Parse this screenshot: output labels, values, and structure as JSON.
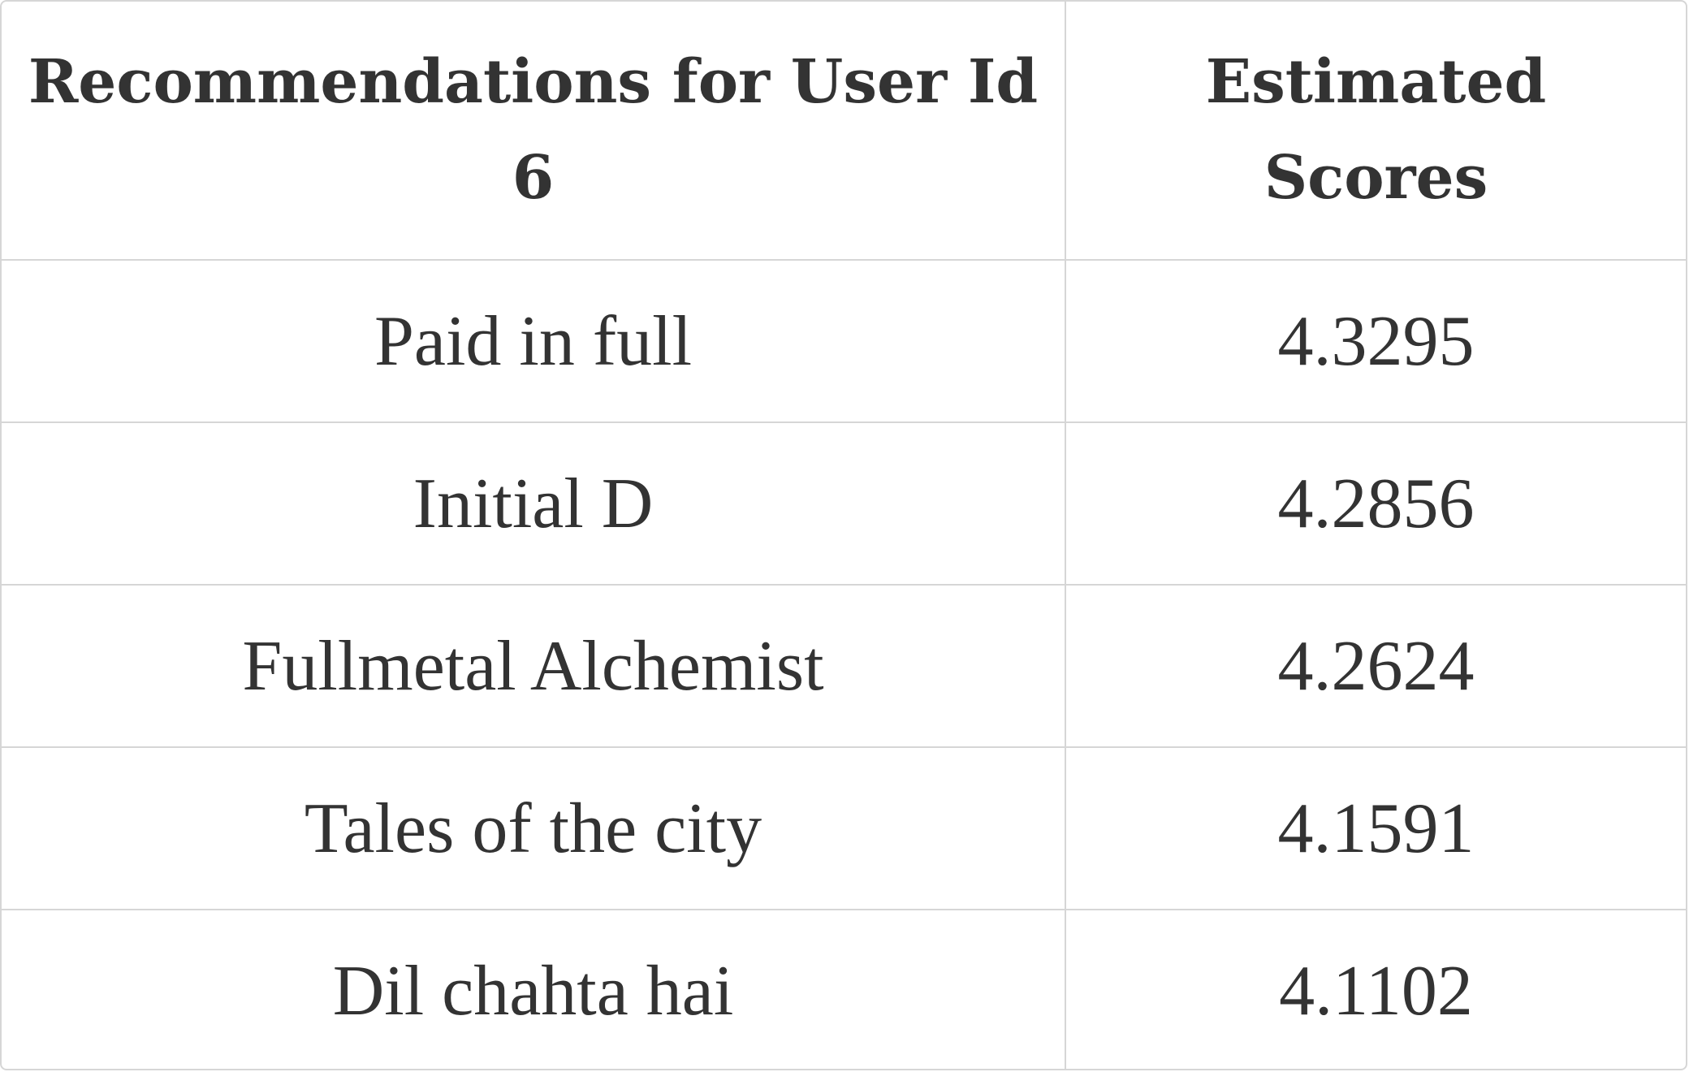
{
  "table": {
    "headers": [
      "Recommendations for User Id 6",
      "Estimated Scores"
    ],
    "rows": [
      [
        "Paid in full",
        "4.3295"
      ],
      [
        "Initial D",
        "4.2856"
      ],
      [
        "Fullmetal Alchemist",
        "4.2624"
      ],
      [
        "Tales of the city",
        "4.1591"
      ],
      [
        "Dil chahta hai",
        "4.1102"
      ]
    ]
  },
  "colors": {
    "text": "#333333",
    "border": "#d6d6d6",
    "background": "#ffffff"
  }
}
